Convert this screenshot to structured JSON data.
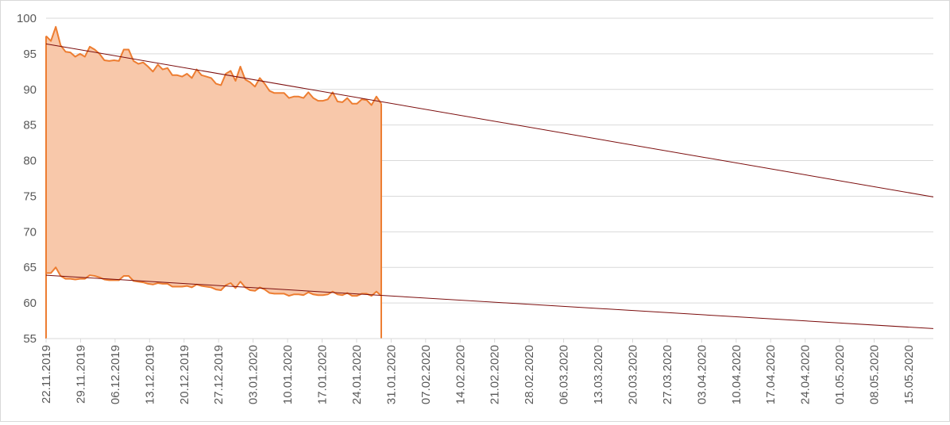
{
  "chart_data": {
    "type": "area",
    "title": "",
    "xlabel": "",
    "ylabel": "",
    "ylim": [
      55,
      100
    ],
    "yticks": [
      55,
      60,
      65,
      70,
      75,
      80,
      85,
      90,
      95,
      100
    ],
    "x_range": [
      "2019-11-22",
      "2020-05-20"
    ],
    "x_tick_labels": [
      "22.11.2019",
      "29.11.2019",
      "06.12.2019",
      "13.12.2019",
      "20.12.2019",
      "27.12.2019",
      "03.01.2020",
      "10.01.2020",
      "17.01.2020",
      "24.01.2020",
      "31.01.2020",
      "07.02.2020",
      "14.02.2020",
      "21.02.2020",
      "28.02.2020",
      "06.03.2020",
      "13.03.2020",
      "20.03.2020",
      "27.03.2020",
      "03.04.2020",
      "10.04.2020",
      "17.04.2020",
      "24.04.2020",
      "01.05.2020",
      "08.05.2020",
      "15.05.2020"
    ],
    "grid": true,
    "legend": "none",
    "colors": {
      "band_fill": "#f8c8aa",
      "series_line": "#ed7d31",
      "trend_line": "#7b0c0c",
      "grid": "#d9d9d9",
      "axis_text": "#595959"
    },
    "x_end": "2020-01-29",
    "series": [
      {
        "values": [
          97.5,
          96.8,
          98.8,
          96.2,
          95.3,
          95.2,
          94.6,
          95.0,
          94.6,
          96.0,
          95.6,
          95.0,
          94.1,
          94.0,
          94.1,
          94.0,
          95.6,
          95.6,
          94.0,
          93.6,
          93.8,
          93.2,
          92.5,
          93.5,
          92.8,
          93.0,
          92.0,
          92.0,
          91.8,
          92.2,
          91.6,
          92.8,
          92.0,
          91.8,
          91.6,
          90.8,
          90.6,
          92.2,
          92.6,
          91.2,
          93.2,
          91.4,
          91.0,
          90.4,
          91.6,
          90.8,
          89.8,
          89.5,
          89.5,
          89.5,
          88.8,
          89.0,
          89.0,
          88.8,
          89.6,
          88.8,
          88.4,
          88.4,
          88.6,
          89.6,
          88.3,
          88.2,
          88.8,
          88.0,
          88.0,
          88.6,
          88.5,
          87.8,
          89.0,
          88.0
        ]
      },
      {
        "values": [
          64.2,
          64.2,
          65.0,
          63.8,
          63.4,
          63.4,
          63.3,
          63.4,
          63.4,
          63.9,
          63.8,
          63.6,
          63.3,
          63.2,
          63.2,
          63.2,
          63.8,
          63.8,
          63.1,
          63.0,
          62.9,
          62.7,
          62.6,
          62.8,
          62.7,
          62.7,
          62.3,
          62.3,
          62.3,
          62.4,
          62.2,
          62.6,
          62.4,
          62.3,
          62.2,
          61.9,
          61.8,
          62.5,
          62.8,
          62.1,
          63.0,
          62.2,
          61.8,
          61.7,
          62.2,
          61.9,
          61.4,
          61.3,
          61.3,
          61.3,
          61.0,
          61.2,
          61.2,
          61.1,
          61.5,
          61.2,
          61.1,
          61.1,
          61.2,
          61.6,
          61.2,
          61.1,
          61.4,
          61.0,
          61.0,
          61.3,
          61.3,
          61.0,
          61.6,
          61.0
        ]
      }
    ],
    "trendlines": [
      {
        "from": "2019-11-22",
        "to": "2020-05-20",
        "start_value": 96.4,
        "end_value": 74.9
      },
      {
        "from": "2019-11-22",
        "to": "2020-05-20",
        "start_value": 63.9,
        "end_value": 56.4
      }
    ]
  }
}
